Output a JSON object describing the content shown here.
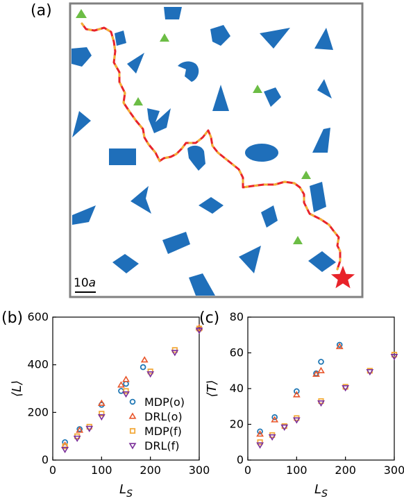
{
  "panel_a": {
    "label": "(a)",
    "scale_bar": {
      "value": "10",
      "unit": "a"
    },
    "colors": {
      "obstacle": "#1f6fba",
      "triangle": "#6cbd45",
      "path": "#e8232a",
      "path_accent": "#f2b134",
      "goal": "#e8232a",
      "frame": "#808080"
    },
    "icons": [
      "obstacle-shape",
      "green-triangle",
      "red-star-goal",
      "trajectory-path"
    ]
  },
  "panel_b": {
    "label": "(b)"
  },
  "panel_c": {
    "label": "(c)"
  },
  "legend": {
    "items": [
      {
        "label": "MDP(o)",
        "marker": "circle",
        "color": "#1f77b4"
      },
      {
        "label": "DRL(o)",
        "marker": "triangle-up",
        "color": "#e8552a"
      },
      {
        "label": "MDP(f)",
        "marker": "square",
        "color": "#f2a93b"
      },
      {
        "label": "DRL(f)",
        "marker": "triangle-down",
        "color": "#7b2f99"
      }
    ]
  },
  "chart_data": [
    {
      "type": "scatter",
      "panel": "(b)",
      "xlabel": "L_S",
      "ylabel": "⟨L⟩",
      "xlim": [
        0,
        300
      ],
      "ylim": [
        0,
        600
      ],
      "xticks": [
        0,
        100,
        200,
        300
      ],
      "yticks": [
        0,
        200,
        400,
        600
      ],
      "series": [
        {
          "name": "MDP(o)",
          "x": [
            25,
            55,
            100,
            140,
            150,
            185,
            300
          ],
          "y": [
            75,
            130,
            232,
            290,
            320,
            390,
            552
          ]
        },
        {
          "name": "DRL(o)",
          "x": [
            25,
            55,
            100,
            140,
            150,
            188,
            300
          ],
          "y": [
            62,
            125,
            238,
            315,
            338,
            420,
            555
          ]
        },
        {
          "name": "MDP(f)",
          "x": [
            25,
            50,
            75,
            100,
            150,
            200,
            250,
            300
          ],
          "y": [
            58,
            100,
            140,
            195,
            290,
            372,
            462,
            552
          ]
        },
        {
          "name": "DRL(f)",
          "x": [
            25,
            50,
            75,
            100,
            150,
            200,
            250,
            300
          ],
          "y": [
            45,
            92,
            133,
            182,
            278,
            362,
            452,
            545
          ]
        }
      ]
    },
    {
      "type": "scatter",
      "panel": "(c)",
      "xlabel": "L_S",
      "ylabel": "⟨T⟩",
      "xlim": [
        0,
        300
      ],
      "ylim": [
        0,
        80
      ],
      "xticks": [
        0,
        100,
        200,
        300
      ],
      "yticks": [
        0,
        20,
        40,
        60,
        80
      ],
      "series": [
        {
          "name": "MDP(o)",
          "x": [
            25,
            55,
            100,
            140,
            150,
            188
          ],
          "y": [
            16,
            24,
            38.5,
            48.5,
            55,
            64.5
          ]
        },
        {
          "name": "DRL(o)",
          "x": [
            25,
            55,
            100,
            140,
            150,
            188
          ],
          "y": [
            14.5,
            22.5,
            36.5,
            48,
            50,
            63.5
          ]
        },
        {
          "name": "MDP(f)",
          "x": [
            25,
            50,
            75,
            100,
            150,
            200,
            250,
            300
          ],
          "y": [
            10,
            14,
            19,
            23.5,
            33,
            41,
            50,
            59
          ]
        },
        {
          "name": "DRL(f)",
          "x": [
            25,
            50,
            75,
            100,
            150,
            200,
            250,
            300
          ],
          "y": [
            8.5,
            13,
            18.5,
            22.5,
            32,
            40.5,
            49.5,
            58
          ]
        }
      ]
    }
  ]
}
